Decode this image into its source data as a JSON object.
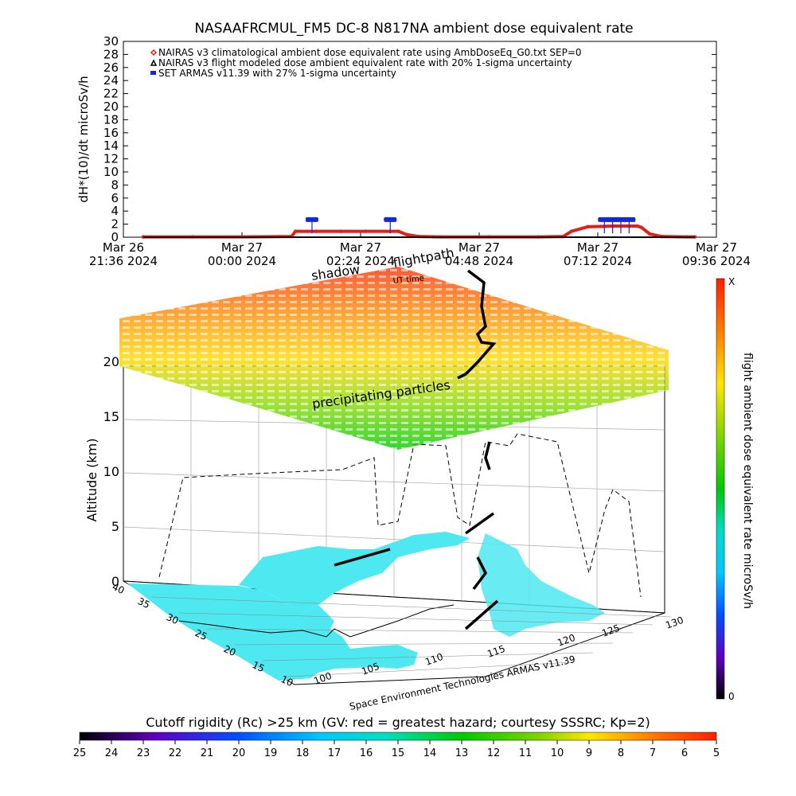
{
  "title": "NASAAFRCMUL_FM5 DC-8   N817NA ambient dose equivalent rate",
  "legend": [
    {
      "marker": "diamond",
      "color": "#e0201b",
      "label": "NAIRAS v3 climatological ambient dose equivalent rate using AmbDoseEq_G0.txt SEP=0"
    },
    {
      "marker": "triangle",
      "color": "#000000",
      "label": "NAIRAS v3 flight modeled dose ambient equivalent rate with 20% 1-sigma uncertainty"
    },
    {
      "marker": "square",
      "color": "#1428d8",
      "label": "SET ARMAS v11.39 with 27% 1-sigma uncertainty"
    }
  ],
  "ts_ylabel": "dH*(10)/dt microSv/h",
  "ts_xticks": [
    {
      "l1": "Mar 26",
      "l2": "21:36 2024"
    },
    {
      "l1": "Mar 27",
      "l2": "00:00 2024"
    },
    {
      "l1": "Mar 27",
      "l2": "02:24 2024"
    },
    {
      "l1": "Mar 27",
      "l2": "04:48 2024"
    },
    {
      "l1": "Mar 27",
      "l2": "07:12 2024"
    },
    {
      "l1": "Mar 27",
      "l2": "09:36 2024"
    }
  ],
  "plot3d": {
    "altitude_label": "Altitude (km)",
    "altitude_ticks": [
      "0",
      "5",
      "10",
      "15",
      "20"
    ],
    "lat_ticks": [
      "10",
      "15",
      "20",
      "25",
      "30",
      "35",
      "40"
    ],
    "lon_ticks": [
      "100",
      "105",
      "110",
      "115",
      "120",
      "125",
      "130"
    ],
    "label_shadow": "shadow",
    "label_flightpath": "flightpath",
    "label_time": "UT time",
    "label_precip": "precipitating particles",
    "credit": "Space Environment Technologies ARMAS v11.39"
  },
  "colorbar_right": {
    "label": "flight ambient dose equivalent rate microSv/h",
    "top": "X",
    "bottom": "0"
  },
  "colorbar_bottom": {
    "title": "Cutoff rigidity (Rc) >25 km (GV: red = greatest hazard; courtesy SSSRC; Kp=2)",
    "ticks": [
      "25",
      "24",
      "23",
      "22",
      "21",
      "20",
      "19",
      "18",
      "17",
      "16",
      "15",
      "14",
      "13",
      "12",
      "11",
      "10",
      "9",
      "8",
      "7",
      "6",
      "5"
    ]
  },
  "colors": {
    "nairas_clim": "#e0201b",
    "nairas_flight": "#000000",
    "armas": "#1428d8",
    "ocean": "#4de8f0",
    "land": "#ffffff"
  },
  "chart_data": [
    {
      "type": "scatter",
      "title": "NASAAFRCMUL_FM5 DC-8   N817NA ambient dose equivalent rate",
      "ylabel": "dH*(10)/dt microSv/h",
      "xlabel": "",
      "x_range": [
        "2024-03-26T21:36",
        "2024-03-27T09:36"
      ],
      "ylim": [
        0,
        30
      ],
      "series": [
        {
          "name": "NAIRAS v3 climatological ambient dose equivalent rate using AmbDoseEq_G0.txt SEP=0",
          "x": [
            "2024-03-26T22:00",
            "2024-03-26T23:00",
            "2024-03-27T00:00",
            "2024-03-27T01:00",
            "2024-03-27T01:05",
            "2024-03-27T01:30",
            "2024-03-27T02:00",
            "2024-03-27T02:30",
            "2024-03-27T03:00",
            "2024-03-27T03:10",
            "2024-03-27T03:20",
            "2024-03-27T03:35",
            "2024-03-27T04:00",
            "2024-03-27T05:00",
            "2024-03-27T06:00",
            "2024-03-27T06:30",
            "2024-03-27T06:40",
            "2024-03-27T07:00",
            "2024-03-27T07:30",
            "2024-03-27T08:00",
            "2024-03-27T08:05",
            "2024-03-27T08:15",
            "2024-03-27T08:30",
            "2024-03-27T09:00",
            "2024-03-27T09:10"
          ],
          "y": [
            0.05,
            0.05,
            0.05,
            0.1,
            0.9,
            0.9,
            0.9,
            0.9,
            0.9,
            0.9,
            0.4,
            0.1,
            0.05,
            0.05,
            0.05,
            0.1,
            0.9,
            1.6,
            1.7,
            1.7,
            1.5,
            0.5,
            0.1,
            0.05,
            0.05
          ]
        },
        {
          "name": "NAIRAS v3 flight modeled dose ambient equivalent rate with 20% 1-sigma uncertainty",
          "x": [
            "2024-03-26T22:00",
            "2024-03-27T00:00",
            "2024-03-27T02:00",
            "2024-03-27T04:00",
            "2024-03-27T06:00",
            "2024-03-27T08:00",
            "2024-03-27T09:10"
          ],
          "y": [
            0.0,
            0.0,
            0.0,
            0.0,
            0.0,
            0.0,
            0.0
          ]
        },
        {
          "name": "SET ARMAS v11.39 with 27% 1-sigma uncertainty",
          "x": [
            "2024-03-27T01:25",
            "2024-03-27T03:00",
            "2024-03-27T07:20",
            "2024-03-27T07:30",
            "2024-03-27T07:40",
            "2024-03-27T07:50"
          ],
          "y": [
            2.7,
            2.7,
            2.7,
            2.7,
            2.7,
            2.7
          ]
        }
      ]
    },
    {
      "type": "heatmap",
      "title": "",
      "xlabel": "",
      "ylabel": "",
      "x_range": [
        100,
        130
      ],
      "y_range": [
        10,
        40
      ],
      "z_range": [
        0,
        20
      ],
      "zlabel": "Altitude (km)",
      "colorbar": {
        "title": "Cutoff rigidity (Rc) >25 km (GV: red = greatest hazard; courtesy SSSRC; Kp=2)",
        "range": [
          25,
          5
        ]
      }
    }
  ]
}
